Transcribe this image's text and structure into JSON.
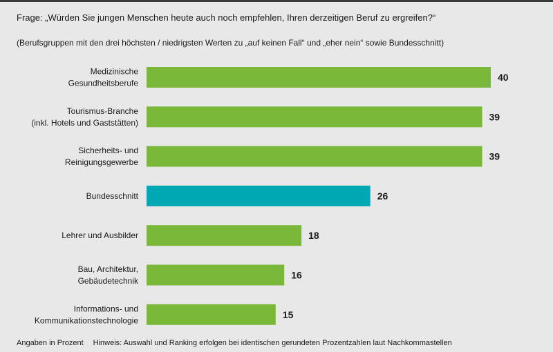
{
  "question": "Frage: „Würden Sie jungen Menschen heute auch noch empfehlen, Ihren derzeitigen Beruf zu ergreifen?“",
  "subtitle": "(Berufsgruppen mit den drei höchsten / niedrigsten Werten zu „auf keinen Fall“ und „eher nein“ sowie Bundesschnitt)",
  "footer": {
    "units_note": "Angaben in Prozent",
    "hint": "Hinweis: Auswahl und Ranking erfolgen bei identischen gerundeten Prozentzahlen laut Nachkommastellen"
  },
  "colors": {
    "bar": "#7ab83a",
    "highlight": "#00a8b4"
  },
  "chart_data": {
    "type": "bar",
    "orientation": "horizontal",
    "categories": [
      [
        "Medizinische",
        "Gesundheitsberufe"
      ],
      [
        "Tourismus-Branche",
        "(inkl. Hotels und Gaststätten)"
      ],
      [
        "Sicherheits- und",
        "Reinigungsgewerbe"
      ],
      [
        "Bundesschnitt"
      ],
      [
        "Lehrer und Ausbilder"
      ],
      [
        "Bau, Architektur,",
        "Gebäudetechnik"
      ],
      [
        "Informations- und",
        "Kommunikationstechnologie"
      ]
    ],
    "values": [
      40,
      39,
      39,
      26,
      18,
      16,
      15
    ],
    "highlighted_category": "Bundesschnitt",
    "xlim": [
      0,
      40
    ],
    "grid": false
  }
}
